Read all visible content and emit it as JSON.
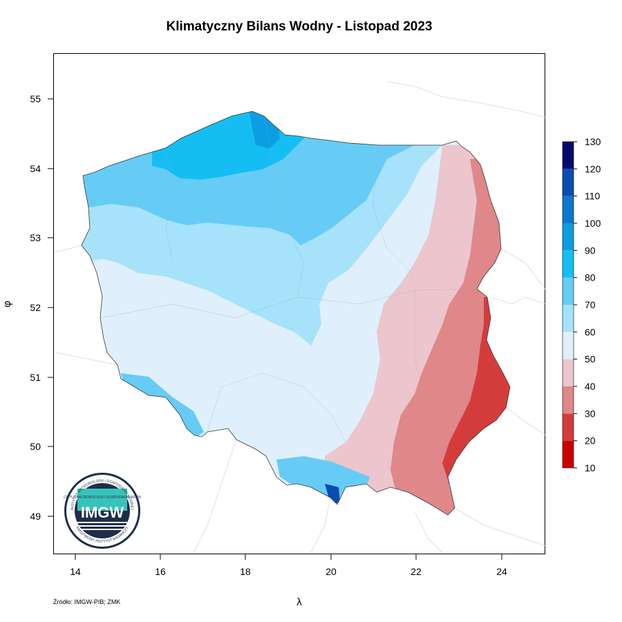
{
  "title": "Klimatyczny Bilans Wodny - Listopad 2023",
  "source": "Źródło: IMGW-PIB; ZMK",
  "axes": {
    "xlabel": "λ",
    "ylabel": "φ",
    "x_ticks": [
      "14",
      "16",
      "18",
      "20",
      "22",
      "24"
    ],
    "y_ticks": [
      "49",
      "50",
      "51",
      "52",
      "53",
      "54",
      "55"
    ]
  },
  "legend": {
    "ticks": [
      "10",
      "20",
      "30",
      "40",
      "50",
      "60",
      "70",
      "80",
      "90",
      "100",
      "110",
      "120",
      "130"
    ],
    "colors": [
      "#cc0000",
      "#d43c3c",
      "#e0878a",
      "#ecc6cc",
      "#dff0fc",
      "#a7e2fb",
      "#66ccf5",
      "#14bef3",
      "#0b9ee3",
      "#0a78cf",
      "#0a4cb0",
      "#020b6b"
    ]
  },
  "logo": {
    "text_main": "IMGW",
    "ring_top": "INSTYTUT METEOROLOGII I GOSPODARKI WODNEJ",
    "ring_bottom": "PAŃSTWOWY INSTYTUT BADAWCZY"
  }
}
